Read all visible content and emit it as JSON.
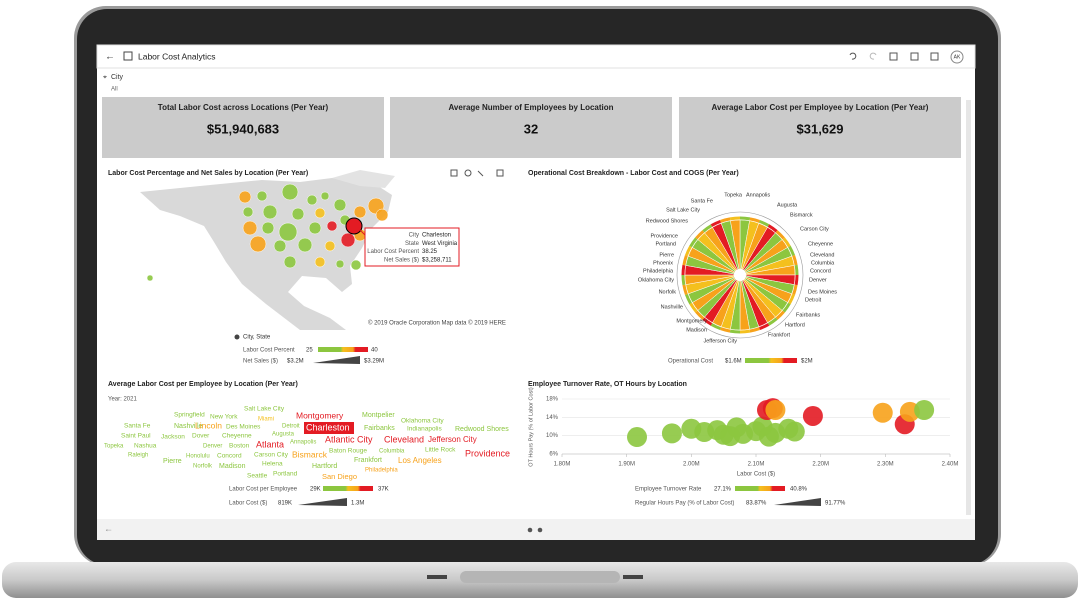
{
  "app": {
    "title": "Labor Cost Analytics",
    "user": "AK"
  },
  "filter": {
    "label": "City",
    "value": "All"
  },
  "kpis": [
    {
      "title": "Total Labor Cost across Locations (Per Year)",
      "value": "$51,940,683"
    },
    {
      "title": "Average Number of Employees by Location",
      "value": "32"
    },
    {
      "title": "Average Labor Cost per Employee by Location (Per Year)",
      "value": "$31,629"
    }
  ],
  "map_panel": {
    "title": "Labor Cost Percentage and Net Sales by Location (Per Year)",
    "tooltip": [
      {
        "key": "City",
        "value": "Charleston"
      },
      {
        "key": "State",
        "value": "West Virginia"
      },
      {
        "key": "Labor Cost Percent",
        "value": "38.25"
      },
      {
        "key": "Net Sales ($)",
        "value": "$3,258,711"
      }
    ],
    "attribution": "© 2019 Oracle Corporation   Map data © 2019 HERE",
    "legend": {
      "series": "City, State",
      "color_label": "Labor Cost Percent",
      "color_min": "25",
      "color_max": "40",
      "size_label": "Net Sales ($)",
      "size_min": "$3.2M",
      "size_max": "$3.29M"
    }
  },
  "sunburst_panel": {
    "title": "Operational Cost Breakdown - Labor Cost and COGS (Per Year)",
    "labels": [
      "Topeka",
      "Annapolis",
      "Santa Fe",
      "Augusta",
      "Salt Lake City",
      "Bismarck",
      "Redwood Shores",
      "Carson City",
      "Providence",
      "Portland",
      "Cheyenne",
      "Pierre",
      "Cleveland",
      "Phoenix",
      "Columbia",
      "Philadelphia",
      "Concord",
      "Oklahoma City",
      "Denver",
      "Norfolk",
      "Des Moines",
      "Detroit",
      "Nashville",
      "Fairbanks",
      "Montgomery",
      "Hartford",
      "Madison",
      "Frankfort",
      "Jefferson City"
    ],
    "legend": {
      "label": "Operational Cost",
      "min": "$1.6M",
      "max": "$2M"
    }
  },
  "wordcloud_panel": {
    "title": "Average Labor Cost per Employee by Location (Per Year)",
    "year": "Year: 2021",
    "words": [
      {
        "text": "Santa Fe",
        "color": "#8cc63f"
      },
      {
        "text": "Springfield",
        "color": "#8cc63f"
      },
      {
        "text": "New York",
        "color": "#8cc63f"
      },
      {
        "text": "Salt Lake City",
        "color": "#8cc63f"
      },
      {
        "text": "Montgomery",
        "color": "#e31b23"
      },
      {
        "text": "Montpelier",
        "color": "#8cc63f"
      },
      {
        "text": "Oklahoma City",
        "color": "#8cc63f"
      },
      {
        "text": "Miami",
        "color": "#f4c01e"
      },
      {
        "text": "Nashville",
        "color": "#8cc63f"
      },
      {
        "text": "Lincoln",
        "color": "#f7a21b"
      },
      {
        "text": "Des Moines",
        "color": "#8cc63f"
      },
      {
        "text": "Detroit",
        "color": "#8cc63f"
      },
      {
        "text": "Charleston",
        "color": "#e31b23"
      },
      {
        "text": "Fairbanks",
        "color": "#8cc63f"
      },
      {
        "text": "Indianapolis",
        "color": "#8cc63f"
      },
      {
        "text": "Redwood Shores",
        "color": "#8cc63f"
      },
      {
        "text": "Saint Paul",
        "color": "#8cc63f"
      },
      {
        "text": "Jackson",
        "color": "#8cc63f"
      },
      {
        "text": "Dover",
        "color": "#8cc63f"
      },
      {
        "text": "Cheyenne",
        "color": "#8cc63f"
      },
      {
        "text": "Augusta",
        "color": "#8cc63f"
      },
      {
        "text": "Atlantic City",
        "color": "#e31b23"
      },
      {
        "text": "Cleveland",
        "color": "#e31b23"
      },
      {
        "text": "Jefferson City",
        "color": "#e31b23"
      },
      {
        "text": "Topeka",
        "color": "#8cc63f"
      },
      {
        "text": "Nashua",
        "color": "#8cc63f"
      },
      {
        "text": "Denver",
        "color": "#8cc63f"
      },
      {
        "text": "Boston",
        "color": "#8cc63f"
      },
      {
        "text": "Atlanta",
        "color": "#e31b23"
      },
      {
        "text": "Annapolis",
        "color": "#8cc63f"
      },
      {
        "text": "Baton Rouge",
        "color": "#8cc63f"
      },
      {
        "text": "Little Rock",
        "color": "#8cc63f"
      },
      {
        "text": "Providence",
        "color": "#e31b23"
      },
      {
        "text": "Raleigh",
        "color": "#8cc63f"
      },
      {
        "text": "Honolulu",
        "color": "#8cc63f"
      },
      {
        "text": "Carson City",
        "color": "#8cc63f"
      },
      {
        "text": "Bismarck",
        "color": "#f7a21b"
      },
      {
        "text": "Columbia",
        "color": "#8cc63f"
      },
      {
        "text": "Pierre",
        "color": "#8cc63f"
      },
      {
        "text": "Concord",
        "color": "#8cc63f"
      },
      {
        "text": "Frankfort",
        "color": "#8cc63f"
      },
      {
        "text": "Los Angeles",
        "color": "#f7a21b"
      },
      {
        "text": "Norfolk",
        "color": "#8cc63f"
      },
      {
        "text": "Madison",
        "color": "#8cc63f"
      },
      {
        "text": "Helena",
        "color": "#8cc63f"
      },
      {
        "text": "Hartford",
        "color": "#8cc63f"
      },
      {
        "text": "Philadelphia",
        "color": "#f7a21b"
      },
      {
        "text": "Seattle",
        "color": "#8cc63f"
      },
      {
        "text": "Portland",
        "color": "#8cc63f"
      },
      {
        "text": "San Diego",
        "color": "#f7a21b"
      }
    ],
    "legend": {
      "color_label": "Labor Cost per Employee",
      "color_min": "29K",
      "color_max": "37K",
      "size_label": "Labor Cost ($)",
      "size_min": "819K",
      "size_max": "1.3M"
    }
  },
  "chart_data": {
    "type": "scatter",
    "title": "Employee Turnover Rate, OT Hours by Location",
    "x_label": "Labor Cost ($)",
    "y_label": "OT Hours Pay (% of Labor Cost)",
    "x": [
      1916000,
      1970000,
      2000000,
      2020000,
      2040000,
      2050000,
      2070000,
      2080000,
      2100000,
      2110000,
      2130000,
      2150000,
      2160000,
      2120000,
      2060000,
      2117000,
      2126000,
      2130000,
      2188000,
      2296000,
      2330000,
      2338000,
      2360000
    ],
    "values": [
      9.7,
      10.5,
      11.5,
      10.8,
      11.2,
      10.2,
      11.8,
      10.4,
      11.0,
      12.0,
      10.6,
      11.5,
      10.9,
      9.8,
      9.9,
      15.6,
      16.0,
      15.6,
      14.3,
      15.0,
      12.5,
      15.2,
      15.6
    ],
    "point_colors": [
      "#8cc63f",
      "#8cc63f",
      "#8cc63f",
      "#8cc63f",
      "#8cc63f",
      "#8cc63f",
      "#8cc63f",
      "#8cc63f",
      "#8cc63f",
      "#8cc63f",
      "#8cc63f",
      "#8cc63f",
      "#8cc63f",
      "#8cc63f",
      "#8cc63f",
      "#e31b23",
      "#e31b23",
      "#f7a21b",
      "#e31b23",
      "#f7a21b",
      "#e31b23",
      "#f7a21b",
      "#8cc63f"
    ],
    "xlim": [
      1800000,
      2400000
    ],
    "xticks": [
      {
        "value": 1800000,
        "label": "1.80M"
      },
      {
        "value": 1900000,
        "label": "1.90M"
      },
      {
        "value": 2000000,
        "label": "2.00M"
      },
      {
        "value": 2100000,
        "label": "2.10M"
      },
      {
        "value": 2200000,
        "label": "2.20M"
      },
      {
        "value": 2300000,
        "label": "2.30M"
      },
      {
        "value": 2400000,
        "label": "2.40M"
      }
    ],
    "ylim": [
      6,
      18
    ],
    "yticks": [
      {
        "value": 6,
        "label": "6%"
      },
      {
        "value": 10,
        "label": "10%"
      },
      {
        "value": 14,
        "label": "14%"
      },
      {
        "value": 18,
        "label": "18%"
      }
    ],
    "grid": true,
    "legend": {
      "color_label": "Employee Turnover Rate",
      "color_min": "27.1%",
      "color_max": "40.8%",
      "size_label": "Regular Hours Pay (% of Labor Cost)",
      "size_min": "83.87%",
      "size_max": "91.77%"
    }
  }
}
